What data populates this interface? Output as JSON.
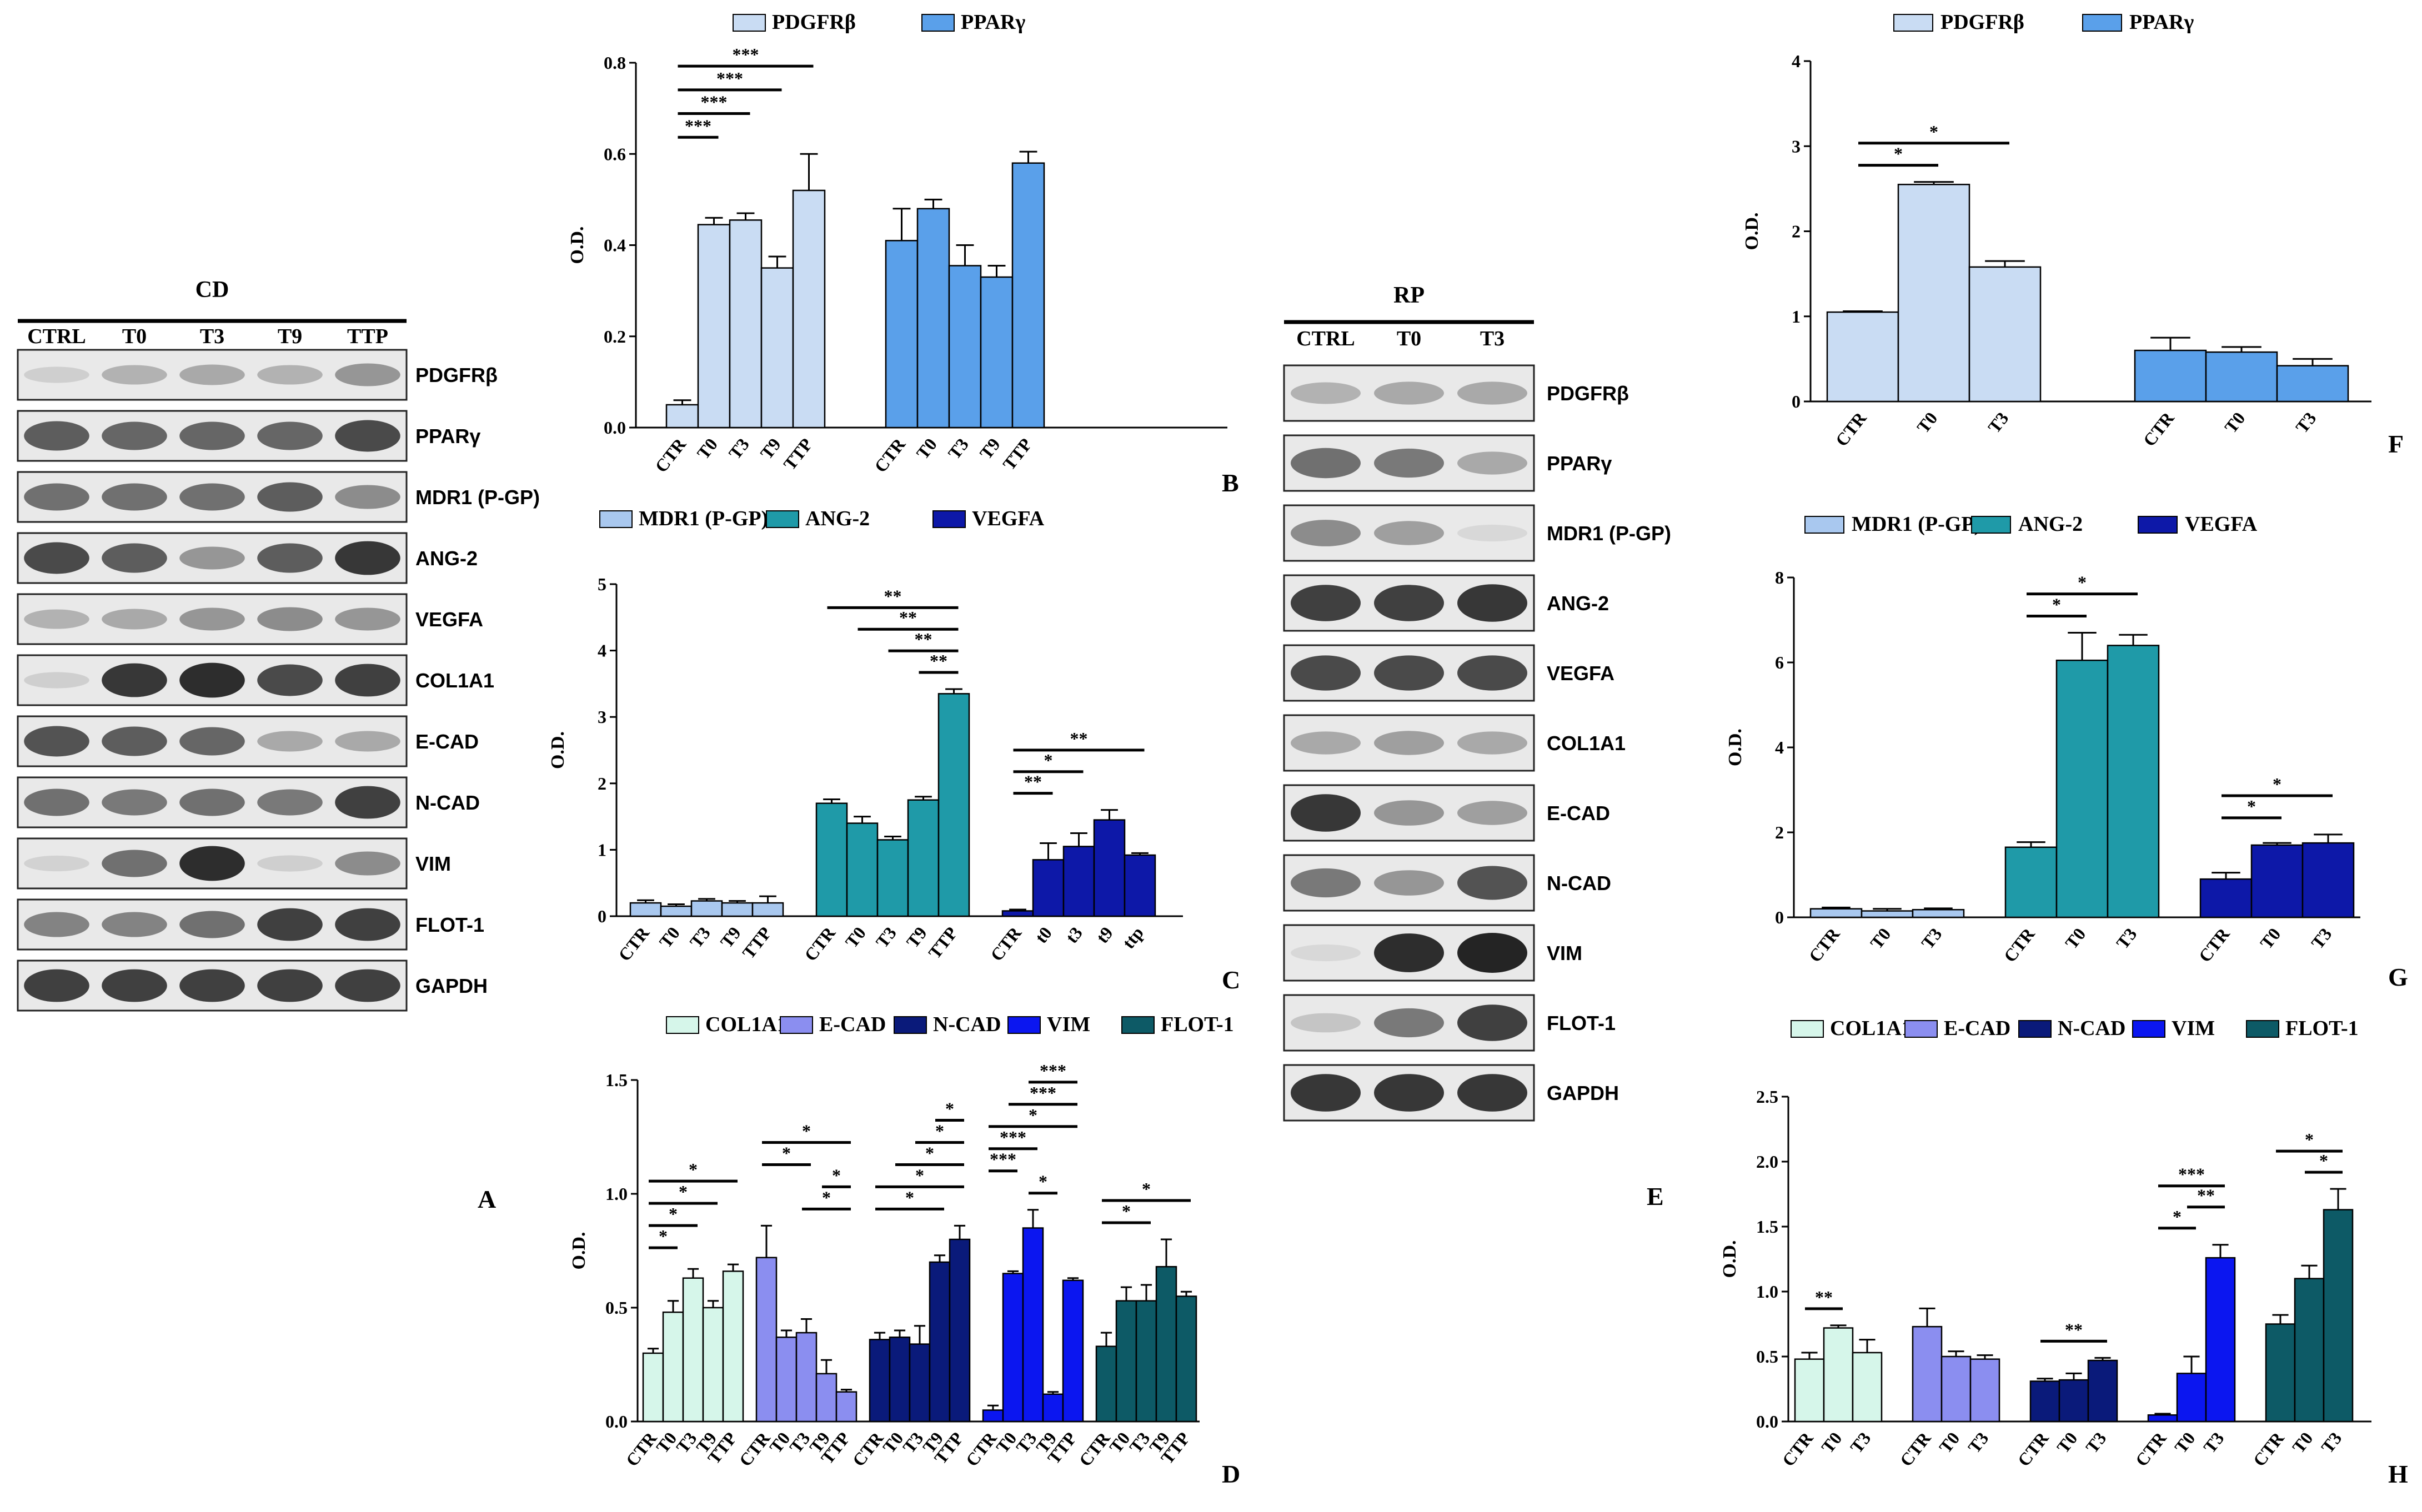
{
  "westerns": [
    {
      "id": "wbA",
      "header": "CD",
      "lanes": [
        "CTRL",
        "T0",
        "T3",
        "T9",
        "TTP"
      ],
      "proteins": [
        "PDGFRβ",
        "PPARγ",
        "MDR1 (P-GP)",
        "ANG-2",
        "VEGFA",
        "COL1A1",
        "E-CAD",
        "N-CAD",
        "VIM",
        "FLOT-1",
        "GAPDH"
      ],
      "intensity": [
        [
          0.1,
          0.25,
          0.3,
          0.25,
          0.4
        ],
        [
          0.7,
          0.65,
          0.65,
          0.65,
          0.8
        ],
        [
          0.6,
          0.6,
          0.6,
          0.7,
          0.45
        ],
        [
          0.8,
          0.7,
          0.4,
          0.7,
          0.9
        ],
        [
          0.25,
          0.3,
          0.4,
          0.45,
          0.4
        ],
        [
          0.1,
          0.9,
          0.95,
          0.8,
          0.85
        ],
        [
          0.75,
          0.7,
          0.65,
          0.3,
          0.3
        ],
        [
          0.6,
          0.55,
          0.6,
          0.55,
          0.85
        ],
        [
          0.08,
          0.6,
          0.95,
          0.1,
          0.45
        ],
        [
          0.5,
          0.5,
          0.6,
          0.85,
          0.85
        ],
        [
          0.85,
          0.85,
          0.85,
          0.85,
          0.85
        ]
      ],
      "panel_label": "A"
    },
    {
      "id": "wbE",
      "header": "RP",
      "lanes": [
        "CTRL",
        "T0",
        "T3"
      ],
      "proteins": [
        "PDGFRβ",
        "PPARγ",
        "MDR1 (P-GP)",
        "ANG-2",
        "VEGFA",
        "COL1A1",
        "E-CAD",
        "N-CAD",
        "VIM",
        "FLOT-1",
        "GAPDH"
      ],
      "intensity": [
        [
          0.25,
          0.3,
          0.3
        ],
        [
          0.6,
          0.55,
          0.3
        ],
        [
          0.45,
          0.35,
          0.05
        ],
        [
          0.85,
          0.85,
          0.9
        ],
        [
          0.8,
          0.8,
          0.8
        ],
        [
          0.3,
          0.35,
          0.3
        ],
        [
          0.9,
          0.4,
          0.35
        ],
        [
          0.55,
          0.4,
          0.75
        ],
        [
          0.05,
          0.95,
          1.0
        ],
        [
          0.15,
          0.55,
          0.85
        ],
        [
          0.9,
          0.9,
          0.9
        ]
      ],
      "panel_label": "E"
    }
  ],
  "chart_data": [
    {
      "id": "B",
      "type": "bar",
      "panel_label": "B",
      "ylabel": "O.D.",
      "ylim": [
        0,
        0.8
      ],
      "yticks": [
        "0.0",
        "0.2",
        "0.4",
        "0.6",
        "0.8"
      ],
      "legend": [
        {
          "name": "PDGFRβ",
          "color": "#c9dcf3"
        },
        {
          "name": "PPARγ",
          "color": "#5aa0ea"
        }
      ],
      "groups": [
        {
          "name": "PDGFRβ",
          "color": "#c9dcf3",
          "categories": [
            "CTR",
            "T0",
            "T3",
            "T9",
            "TTP"
          ],
          "values": [
            0.05,
            0.445,
            0.455,
            0.35,
            0.52
          ],
          "errors": [
            0.01,
            0.015,
            0.015,
            0.025,
            0.08
          ]
        },
        {
          "name": "PPARγ",
          "color": "#5aa0ea",
          "categories": [
            "CTR",
            "T0",
            "T3",
            "T9",
            "TTP"
          ],
          "values": [
            0.41,
            0.48,
            0.355,
            0.33,
            0.58
          ],
          "errors": [
            0.07,
            0.02,
            0.045,
            0.025,
            0.025
          ]
        }
      ],
      "significance": [
        {
          "group": 0,
          "from": 0,
          "to": 1,
          "label": "***",
          "level": 0
        },
        {
          "group": 0,
          "from": 0,
          "to": 2,
          "label": "***",
          "level": 1
        },
        {
          "group": 0,
          "from": 0,
          "to": 3,
          "label": "***",
          "level": 2
        },
        {
          "group": 0,
          "from": 0,
          "to": 4,
          "label": "***",
          "level": 3
        }
      ]
    },
    {
      "id": "C",
      "type": "bar",
      "panel_label": "C",
      "ylabel": "O.D.",
      "ylim": [
        0,
        5
      ],
      "yticks": [
        "0",
        "1",
        "2",
        "3",
        "4",
        "5"
      ],
      "legend": [
        {
          "name": "MDR1 (P-GP)",
          "color": "#a9c8ef"
        },
        {
          "name": "ANG-2",
          "color": "#1f9aa8"
        },
        {
          "name": "VEGFA",
          "color": "#0d18a8"
        }
      ],
      "groups": [
        {
          "name": "MDR1 (P-GP)",
          "color": "#a9c8ef",
          "categories": [
            "CTR",
            "T0",
            "T3",
            "T9",
            "TTP"
          ],
          "values": [
            0.2,
            0.15,
            0.23,
            0.2,
            0.2
          ],
          "errors": [
            0.04,
            0.03,
            0.03,
            0.03,
            0.1
          ]
        },
        {
          "name": "ANG-2",
          "color": "#1f9aa8",
          "categories": [
            "CTR",
            "T0",
            "T3",
            "T9",
            "TTP"
          ],
          "values": [
            1.7,
            1.4,
            1.15,
            1.75,
            3.35
          ],
          "errors": [
            0.06,
            0.1,
            0.05,
            0.05,
            0.07
          ]
        },
        {
          "name": "VEGFA",
          "color": "#0d18a8",
          "categories": [
            "CTR",
            "t0",
            "t3",
            "t9",
            "ttp"
          ],
          "values": [
            0.08,
            0.85,
            1.05,
            1.45,
            0.92
          ],
          "errors": [
            0.02,
            0.25,
            0.2,
            0.15,
            0.03
          ]
        }
      ],
      "significance": [
        {
          "group": 1,
          "from": 0,
          "to": 4,
          "label": "**",
          "level": 3
        },
        {
          "group": 1,
          "from": 1,
          "to": 4,
          "label": "**",
          "level": 2
        },
        {
          "group": 1,
          "from": 2,
          "to": 4,
          "label": "**",
          "level": 1
        },
        {
          "group": 1,
          "from": 3,
          "to": 4,
          "label": "**",
          "level": 0
        },
        {
          "group": 2,
          "from": 0,
          "to": 1,
          "label": "**",
          "level": 0
        },
        {
          "group": 2,
          "from": 0,
          "to": 2,
          "label": "*",
          "level": 1
        },
        {
          "group": 2,
          "from": 0,
          "to": 4,
          "label": "**",
          "level": 2
        }
      ]
    },
    {
      "id": "D",
      "type": "bar",
      "panel_label": "D",
      "ylabel": "O.D.",
      "ylim": [
        0,
        1.5
      ],
      "yticks": [
        "0.0",
        "0.5",
        "1.0",
        "1.5"
      ],
      "legend": [
        {
          "name": "COL1A1",
          "color": "#d6f6ea"
        },
        {
          "name": "E-CAD",
          "color": "#8b8ef0"
        },
        {
          "name": "N-CAD",
          "color": "#0a1a7a"
        },
        {
          "name": "VIM",
          "color": "#0b16f0"
        },
        {
          "name": "FLOT-1",
          "color": "#0d5a66"
        }
      ],
      "groups": [
        {
          "name": "COL1A1",
          "color": "#d6f6ea",
          "categories": [
            "CTR",
            "T0",
            "T3",
            "T9",
            "TTP"
          ],
          "values": [
            0.3,
            0.48,
            0.63,
            0.5,
            0.66
          ],
          "errors": [
            0.02,
            0.05,
            0.04,
            0.03,
            0.03
          ]
        },
        {
          "name": "E-CAD",
          "color": "#8b8ef0",
          "categories": [
            "CTR",
            "T0",
            "T3",
            "T9",
            "TTP"
          ],
          "values": [
            0.72,
            0.37,
            0.39,
            0.21,
            0.13
          ],
          "errors": [
            0.14,
            0.03,
            0.06,
            0.06,
            0.01
          ]
        },
        {
          "name": "N-CAD",
          "color": "#0a1a7a",
          "categories": [
            "CTR",
            "T0",
            "T3",
            "T9",
            "TTP"
          ],
          "values": [
            0.36,
            0.37,
            0.34,
            0.7,
            0.8
          ],
          "errors": [
            0.03,
            0.03,
            0.08,
            0.03,
            0.06
          ]
        },
        {
          "name": "VIM",
          "color": "#0b16f0",
          "categories": [
            "CTR",
            "T0",
            "T3",
            "T9",
            "TTP"
          ],
          "values": [
            0.05,
            0.65,
            0.85,
            0.12,
            0.62
          ],
          "errors": [
            0.02,
            0.01,
            0.08,
            0.01,
            0.01
          ]
        },
        {
          "name": "FLOT-1",
          "color": "#0d5a66",
          "categories": [
            "CTR",
            "T0",
            "T3",
            "T9",
            "TTP"
          ],
          "values": [
            0.33,
            0.53,
            0.53,
            0.68,
            0.55
          ],
          "errors": [
            0.06,
            0.06,
            0.07,
            0.12,
            0.02
          ]
        }
      ],
      "significance": [
        {
          "group": 0,
          "from": 0,
          "to": 1,
          "label": "*",
          "level": 0
        },
        {
          "group": 0,
          "from": 0,
          "to": 2,
          "label": "*",
          "level": 1
        },
        {
          "group": 0,
          "from": 0,
          "to": 3,
          "label": "*",
          "level": 2
        },
        {
          "group": 0,
          "from": 0,
          "to": 4,
          "label": "*",
          "level": 3
        },
        {
          "group": 1,
          "from": 2,
          "to": 4,
          "label": "*",
          "level": 0
        },
        {
          "group": 1,
          "from": 3,
          "to": 4,
          "label": "*",
          "level": 1
        },
        {
          "group": 1,
          "from": 0,
          "to": 2,
          "label": "*",
          "level": 2
        },
        {
          "group": 1,
          "from": 0,
          "to": 4,
          "label": "*",
          "level": 3
        },
        {
          "group": 2,
          "from": 0,
          "to": 3,
          "label": "*",
          "level": 0
        },
        {
          "group": 2,
          "from": 0,
          "to": 4,
          "label": "*",
          "level": 1
        },
        {
          "group": 2,
          "from": 1,
          "to": 4,
          "label": "*",
          "level": 2
        },
        {
          "group": 2,
          "from": 2,
          "to": 4,
          "label": "*",
          "level": 3
        },
        {
          "group": 2,
          "from": 3,
          "to": 4,
          "label": "*",
          "level": 4
        },
        {
          "group": 3,
          "from": 2,
          "to": 3,
          "label": "*",
          "level": 0
        },
        {
          "group": 3,
          "from": 0,
          "to": 1,
          "label": "***",
          "level": 1
        },
        {
          "group": 3,
          "from": 0,
          "to": 2,
          "label": "***",
          "level": 2
        },
        {
          "group": 3,
          "from": 0,
          "to": 4,
          "label": "*",
          "level": 3
        },
        {
          "group": 3,
          "from": 1,
          "to": 4,
          "label": "***",
          "level": 4
        },
        {
          "group": 3,
          "from": 2,
          "to": 4,
          "label": "***",
          "level": 5
        },
        {
          "group": 4,
          "from": 0,
          "to": 2,
          "label": "*",
          "level": 0
        },
        {
          "group": 4,
          "from": 0,
          "to": 4,
          "label": "*",
          "level": 1
        }
      ]
    },
    {
      "id": "F",
      "type": "bar",
      "panel_label": "F",
      "ylabel": "O.D.",
      "ylim": [
        0,
        4
      ],
      "yticks": [
        "0",
        "1",
        "2",
        "3",
        "4"
      ],
      "legend": [
        {
          "name": "PDGFRβ",
          "color": "#c9dcf3"
        },
        {
          "name": "PPARγ",
          "color": "#5aa0ea"
        }
      ],
      "groups": [
        {
          "name": "PDGFRβ",
          "color": "#c9dcf3",
          "categories": [
            "CTR",
            "T0",
            "T3"
          ],
          "values": [
            1.05,
            2.55,
            1.58
          ],
          "errors": [
            0.01,
            0.03,
            0.07
          ]
        },
        {
          "name": "PPARγ",
          "color": "#5aa0ea",
          "categories": [
            "CTR",
            "T0",
            "T3"
          ],
          "values": [
            0.6,
            0.58,
            0.42
          ],
          "errors": [
            0.15,
            0.06,
            0.08
          ]
        }
      ],
      "significance": [
        {
          "group": 0,
          "from": 0,
          "to": 1,
          "label": "*",
          "level": 0
        },
        {
          "group": 0,
          "from": 0,
          "to": 2,
          "label": "*",
          "level": 1
        }
      ]
    },
    {
      "id": "G",
      "type": "bar",
      "panel_label": "G",
      "ylabel": "O.D.",
      "ylim": [
        0,
        8
      ],
      "yticks": [
        "0",
        "2",
        "4",
        "6",
        "8"
      ],
      "legend": [
        {
          "name": "MDR1 (P-GP)",
          "color": "#a9c8ef"
        },
        {
          "name": "ANG-2",
          "color": "#1f9aa8"
        },
        {
          "name": "VEGFA",
          "color": "#0d18a8"
        }
      ],
      "groups": [
        {
          "name": "MDR1 (P-GP)",
          "color": "#a9c8ef",
          "categories": [
            "CTR",
            "T0",
            "T3"
          ],
          "values": [
            0.2,
            0.15,
            0.18
          ],
          "errors": [
            0.03,
            0.05,
            0.03
          ]
        },
        {
          "name": "ANG-2",
          "color": "#1f9aa8",
          "categories": [
            "CTR",
            "T0",
            "T3"
          ],
          "values": [
            1.65,
            6.05,
            6.4
          ],
          "errors": [
            0.12,
            0.65,
            0.25
          ]
        },
        {
          "name": "VEGFA",
          "color": "#0d18a8",
          "categories": [
            "CTR",
            "T0",
            "T3"
          ],
          "values": [
            0.9,
            1.7,
            1.75
          ],
          "errors": [
            0.15,
            0.05,
            0.2
          ]
        }
      ],
      "significance": [
        {
          "group": 1,
          "from": 0,
          "to": 1,
          "label": "*",
          "level": 0
        },
        {
          "group": 1,
          "from": 0,
          "to": 2,
          "label": "*",
          "level": 1
        },
        {
          "group": 2,
          "from": 0,
          "to": 1,
          "label": "*",
          "level": 0
        },
        {
          "group": 2,
          "from": 0,
          "to": 2,
          "label": "*",
          "level": 1
        }
      ]
    },
    {
      "id": "H",
      "type": "bar",
      "panel_label": "H",
      "ylabel": "O.D.",
      "ylim": [
        0,
        2.5
      ],
      "yticks": [
        "0.0",
        "0.5",
        "1.0",
        "1.5",
        "2.0",
        "2.5"
      ],
      "legend": [
        {
          "name": "COL1A1",
          "color": "#d6f6ea"
        },
        {
          "name": "E-CAD",
          "color": "#8b8ef0"
        },
        {
          "name": "N-CAD",
          "color": "#0a1a7a"
        },
        {
          "name": "VIM",
          "color": "#0b16f0"
        },
        {
          "name": "FLOT-1",
          "color": "#0d5a66"
        }
      ],
      "groups": [
        {
          "name": "COL1A1",
          "color": "#d6f6ea",
          "categories": [
            "CTR",
            "T0",
            "T3"
          ],
          "values": [
            0.48,
            0.72,
            0.53
          ],
          "errors": [
            0.05,
            0.02,
            0.1
          ]
        },
        {
          "name": "E-CAD",
          "color": "#8b8ef0",
          "categories": [
            "CTR",
            "T0",
            "T3"
          ],
          "values": [
            0.73,
            0.5,
            0.48
          ],
          "errors": [
            0.14,
            0.04,
            0.03
          ]
        },
        {
          "name": "N-CAD",
          "color": "#0a1a7a",
          "categories": [
            "CTR",
            "T0",
            "T3"
          ],
          "values": [
            0.31,
            0.32,
            0.47
          ],
          "errors": [
            0.02,
            0.05,
            0.02
          ]
        },
        {
          "name": "VIM",
          "color": "#0b16f0",
          "categories": [
            "CTR",
            "T0",
            "T3"
          ],
          "values": [
            0.05,
            0.37,
            1.26
          ],
          "errors": [
            0.01,
            0.13,
            0.1
          ]
        },
        {
          "name": "FLOT-1",
          "color": "#0d5a66",
          "categories": [
            "CTR",
            "T0",
            "T3"
          ],
          "values": [
            0.75,
            1.1,
            1.63
          ],
          "errors": [
            0.07,
            0.1,
            0.16
          ]
        }
      ],
      "significance": [
        {
          "group": 0,
          "from": 0,
          "to": 1,
          "label": "**",
          "level": 0
        },
        {
          "group": 2,
          "from": 0,
          "to": 2,
          "label": "**",
          "level": 0
        },
        {
          "group": 3,
          "from": 0,
          "to": 1,
          "label": "*",
          "level": 0
        },
        {
          "group": 3,
          "from": 1,
          "to": 2,
          "label": "**",
          "level": 1
        },
        {
          "group": 3,
          "from": 0,
          "to": 2,
          "label": "***",
          "level": 2
        },
        {
          "group": 4,
          "from": 1,
          "to": 2,
          "label": "*",
          "level": 0
        },
        {
          "group": 4,
          "from": 0,
          "to": 2,
          "label": "*",
          "level": 1
        }
      ]
    }
  ]
}
